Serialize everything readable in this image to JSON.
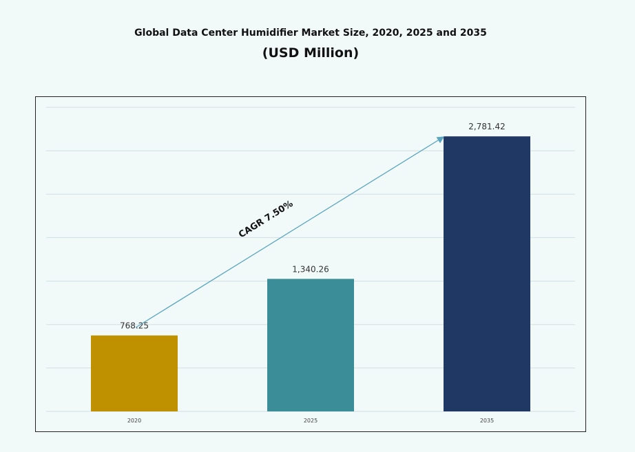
{
  "chart_data": {
    "type": "bar",
    "title": "Global Data Center Humidifier Market Size, 2020, 2025 and 2035",
    "subtitle": "(USD Million)",
    "categories": [
      "2020",
      "2025",
      "2035"
    ],
    "values": [
      768.25,
      1340.26,
      2781.42
    ],
    "data_labels": [
      "768.25",
      "1,340.26",
      "2,781.42"
    ],
    "colors": [
      "#bf9000",
      "#3b8d98",
      "#203864"
    ],
    "xlabel": "",
    "ylabel": "",
    "ylim": [
      0,
      3075
    ],
    "grid": true,
    "annotation": {
      "text": "CAGR 7.50%",
      "arrow_color": "#5aa5c0"
    }
  }
}
